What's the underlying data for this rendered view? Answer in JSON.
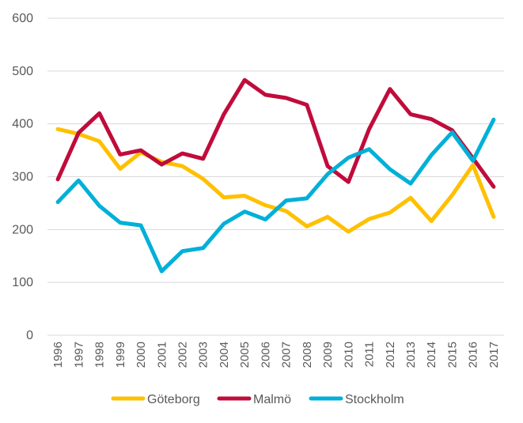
{
  "chart_data": {
    "type": "line",
    "title": "",
    "xlabel": "",
    "ylabel": "",
    "ylim": [
      0,
      600
    ],
    "yticks": [
      0,
      100,
      200,
      300,
      400,
      500,
      600
    ],
    "grid": true,
    "legend": "bottom",
    "categories": [
      "1996",
      "1997",
      "1998",
      "1999",
      "2000",
      "2001",
      "2002",
      "2003",
      "2004",
      "2005",
      "2006",
      "2007",
      "2008",
      "2009",
      "2010",
      "2011",
      "2012",
      "2013",
      "2014",
      "2015",
      "2016",
      "2017"
    ],
    "series": [
      {
        "name": "Göteborg",
        "color": "#FFC000",
        "values": [
          390,
          381,
          367,
          315,
          346,
          328,
          320,
          296,
          261,
          264,
          246,
          235,
          206,
          224,
          196,
          220,
          232,
          260,
          216,
          265,
          322,
          224
        ]
      },
      {
        "name": "Malmö",
        "color": "#C00C3B",
        "values": [
          295,
          383,
          420,
          342,
          350,
          323,
          344,
          334,
          418,
          483,
          455,
          449,
          436,
          320,
          290,
          390,
          466,
          418,
          409,
          388,
          335,
          281
        ]
      },
      {
        "name": "Stockholm",
        "color": "#00B0D8",
        "values": [
          252,
          293,
          245,
          213,
          208,
          121,
          159,
          165,
          211,
          234,
          219,
          255,
          259,
          305,
          336,
          352,
          314,
          287,
          341,
          384,
          330,
          408
        ]
      }
    ]
  }
}
